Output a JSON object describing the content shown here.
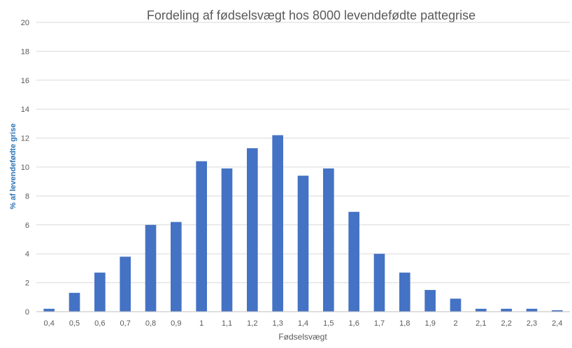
{
  "chart_data": {
    "type": "bar",
    "title": "Fordeling af fødselsvægt hos 8000 levendefødte pattegrise",
    "xlabel": "Fødselsvægt",
    "ylabel": "% af levendefødte grise",
    "categories": [
      "0,4",
      "0,5",
      "0,6",
      "0,7",
      "0,8",
      "0,9",
      "1",
      "1,1",
      "1,2",
      "1,3",
      "1,4",
      "1,5",
      "1,6",
      "1,7",
      "1,8",
      "1,9",
      "2",
      "2,1",
      "2,2",
      "2,3",
      "2,4"
    ],
    "values": [
      0.2,
      1.3,
      2.7,
      3.8,
      6.0,
      6.2,
      10.4,
      9.9,
      11.3,
      12.2,
      9.4,
      9.9,
      6.9,
      4.0,
      2.7,
      1.5,
      0.9,
      0.2,
      0.2,
      0.2,
      0.1
    ],
    "ylim": [
      0,
      20
    ],
    "yticks": [
      "0",
      "2",
      "4",
      "6",
      "8",
      "10",
      "12",
      "14",
      "16",
      "18",
      "20"
    ],
    "grid": true,
    "legend": "none",
    "bar_color": "#4472c4"
  }
}
